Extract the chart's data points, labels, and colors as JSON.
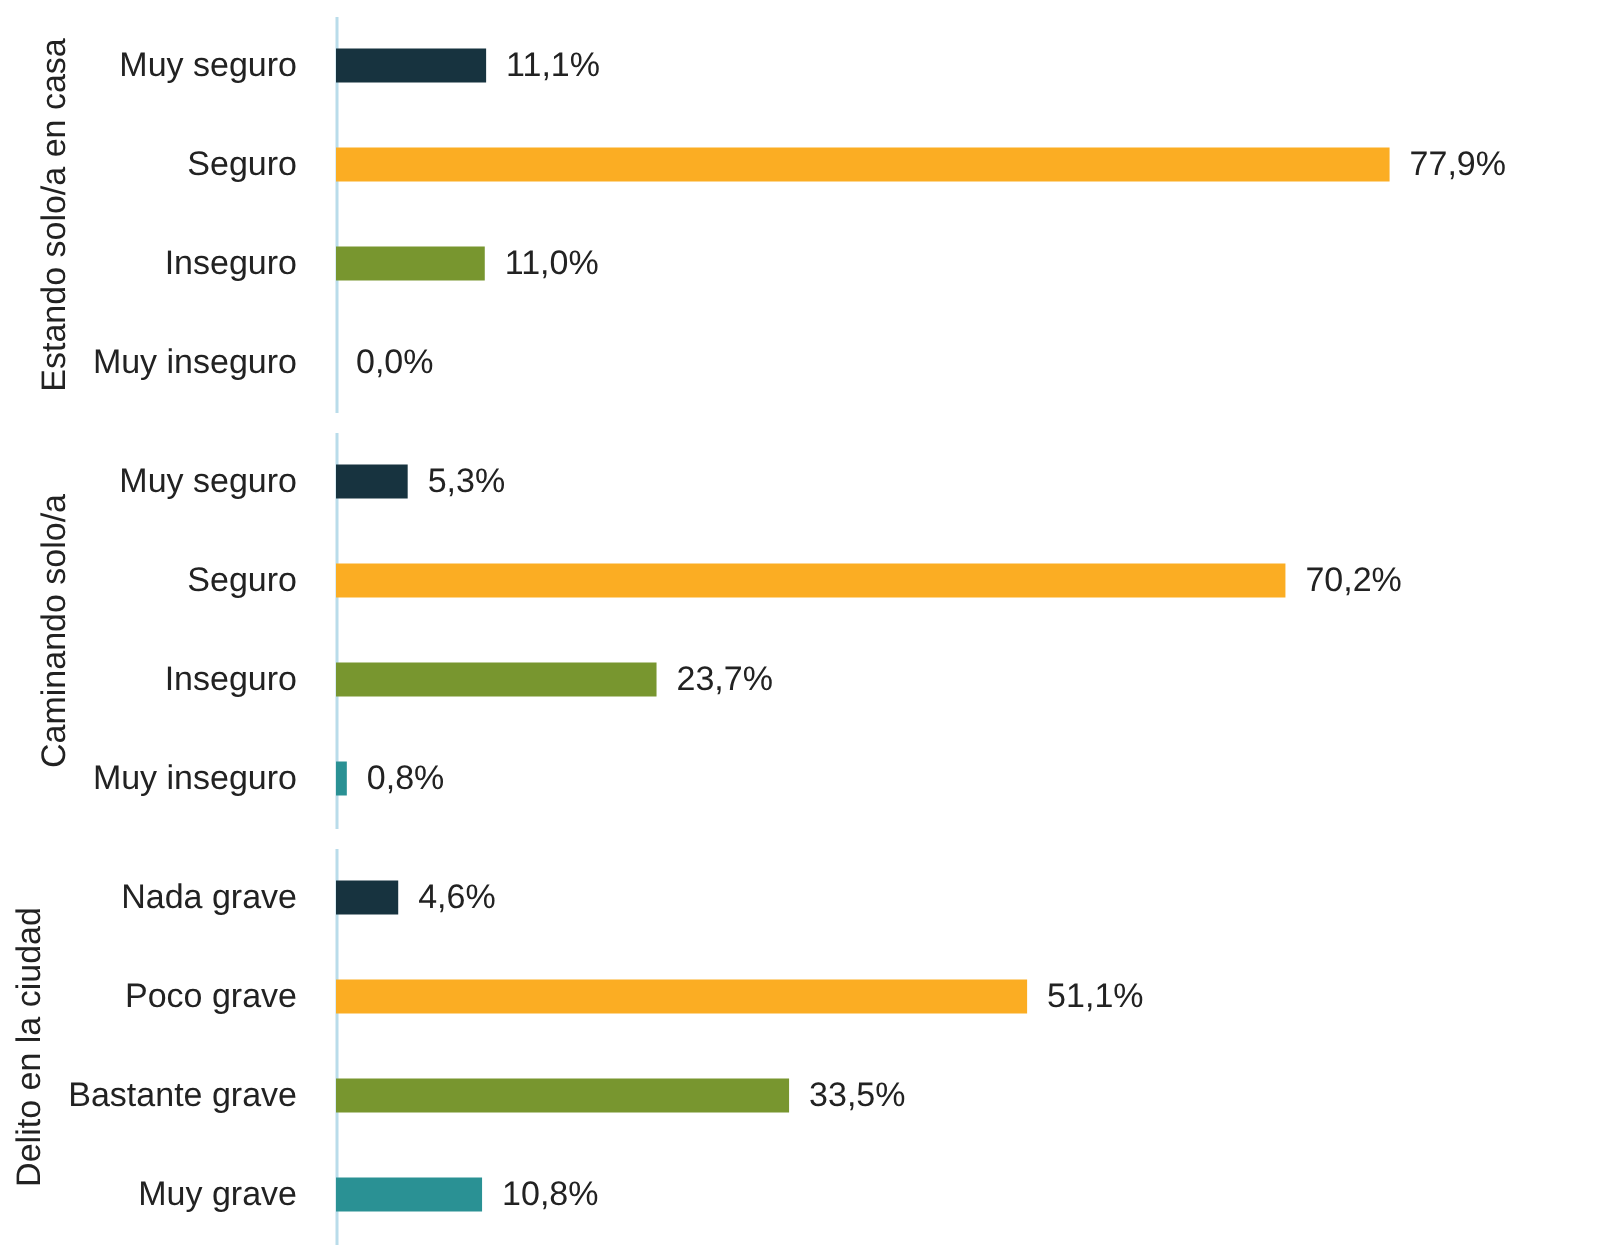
{
  "chart_data": [
    {
      "type": "bar",
      "orientation": "horizontal",
      "ylabel": "Estando solo/a en casa",
      "categories": [
        "Muy seguro",
        "Seguro",
        "Inseguro",
        "Muy inseguro"
      ],
      "values": [
        11.1,
        77.9,
        11.0,
        0.0
      ],
      "value_labels": [
        "11,1%",
        "77,9%",
        "11,0%",
        "0,0%"
      ],
      "colors": [
        "#17333f",
        "#fbad23",
        "#78962f",
        "#2a9194"
      ],
      "tick_labels": "y"
    },
    {
      "type": "bar",
      "orientation": "horizontal",
      "ylabel": "Caminando solo/a",
      "categories": [
        "Muy seguro",
        "Seguro",
        "Inseguro",
        "Muy inseguro"
      ],
      "values": [
        5.3,
        70.2,
        23.7,
        0.8
      ],
      "value_labels": [
        "5,3%",
        "70,2%",
        "23,7%",
        "0,8%"
      ],
      "colors": [
        "#17333f",
        "#fbad23",
        "#78962f",
        "#2a9194"
      ],
      "tick_labels": "y"
    },
    {
      "type": "bar",
      "orientation": "horizontal",
      "ylabel": "Delito en la ciudad",
      "categories": [
        "Nada grave",
        "Poco grave",
        "Bastante grave",
        "Muy grave"
      ],
      "values": [
        4.6,
        51.1,
        33.5,
        10.8
      ],
      "value_labels": [
        "4,6%",
        "51,1%",
        "33,5%",
        "10,8%"
      ],
      "colors": [
        "#17333f",
        "#fbad23",
        "#78962f",
        "#2a9194"
      ],
      "tick_labels": "y"
    }
  ]
}
